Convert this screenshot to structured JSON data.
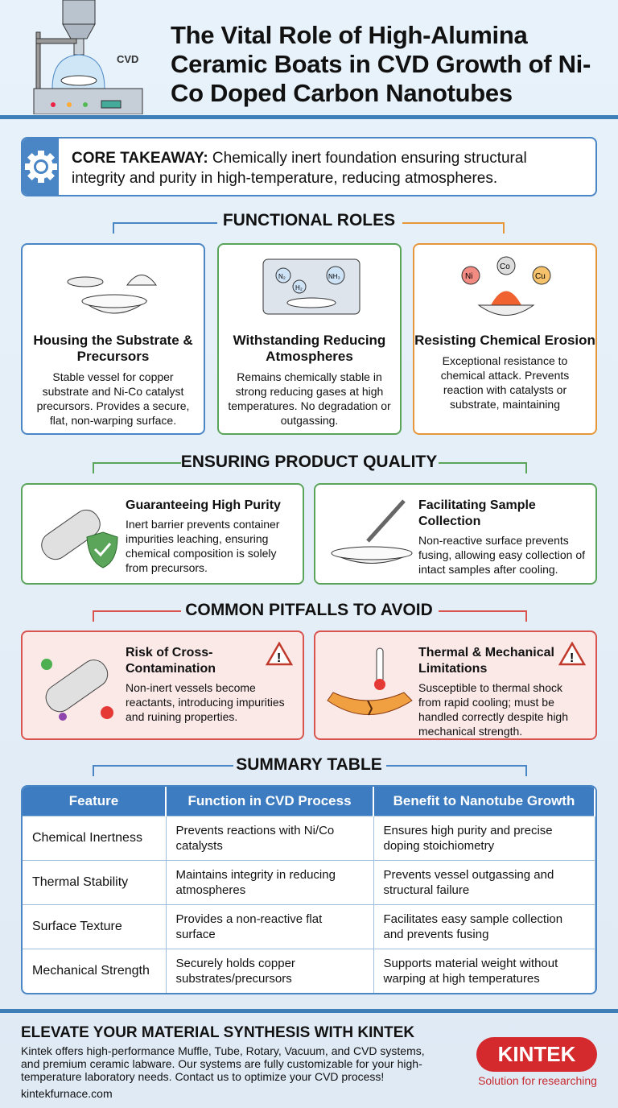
{
  "header": {
    "title": "The Vital Role of High-Alumina Ceramic Boats in CVD Growth of Ni-Co Doped Carbon Nanotubes",
    "illustration_label": "CVD"
  },
  "core": {
    "label": "CORE TAKEAWAY:",
    "text": " Chemically inert foundation ensuring structural integrity and purity in high-temperature, reducing atmospheres."
  },
  "functional": {
    "heading": "FUNCTIONAL ROLES",
    "cards": [
      {
        "title": "Housing the Substrate & Precursors",
        "text": "Stable vessel for copper substrate and Ni-Co catalyst precursors. Provides a secure, flat, non-warping surface.",
        "color": "#4a86c5"
      },
      {
        "title": "Withstanding Reducing Atmospheres",
        "text": "Remains chemically stable in strong reducing gases at high temperatures. No degradation or outgassing.",
        "color": "#5aa55a",
        "labels": [
          "N₂",
          "H₂",
          "NH₃"
        ]
      },
      {
        "title": "Resisting Chemical Erosion",
        "text": "Exceptional resistance to chemical attack. Prevents reaction with catalysts or substrate, maintaining",
        "color": "#e8963a",
        "labels": [
          "Ni",
          "Co",
          "Cu"
        ]
      }
    ]
  },
  "quality": {
    "heading": "ENSURING PRODUCT QUALITY",
    "cards": [
      {
        "title": "Guaranteeing High Purity",
        "text": "Inert barrier prevents container impurities leaching, ensuring chemical composition is solely from precursors."
      },
      {
        "title": "Facilitating Sample Collection",
        "text": "Non-reactive surface prevents fusing, allowing easy collection of intact samples after cooling."
      }
    ]
  },
  "pitfalls": {
    "heading": "COMMON PITFALLS TO AVOID",
    "cards": [
      {
        "title": "Risk of Cross-Contamination",
        "text": "Non-inert vessels become reactants, introducing impurities and ruining properties."
      },
      {
        "title": "Thermal & Mechanical Limitations",
        "text": "Susceptible to thermal shock from rapid cooling; must be handled correctly despite high mechanical strength."
      }
    ]
  },
  "summary": {
    "heading": "SUMMARY TABLE",
    "columns": [
      "Feature",
      "Function in CVD Process",
      "Benefit to Nanotube Growth"
    ],
    "rows": [
      [
        "Chemical Inertness",
        "Prevents reactions with Ni/Co catalysts",
        "Ensures high purity and precise doping stoichiometry"
      ],
      [
        "Thermal Stability",
        "Maintains integrity in reducing atmospheres",
        "Prevents vessel outgassing and structural failure"
      ],
      [
        "Surface Texture",
        "Provides a non-reactive flat surface",
        "Facilitates easy sample collection and prevents fusing"
      ],
      [
        "Mechanical Strength",
        "Securely holds copper substrates/precursors",
        "Supports material weight without warping at high temperatures"
      ]
    ]
  },
  "footer": {
    "heading": "ELEVATE YOUR MATERIAL SYNTHESIS WITH KINTEK",
    "text": "Kintek offers high-performance Muffle, Tube, Rotary, Vacuum, and CVD systems, and premium ceramic labware. Our systems are fully customizable for your high-temperature laboratory needs. Contact us to optimize your CVD process!",
    "url": "kintekfurnace.com",
    "logo": "KINTEK",
    "tagline": "Solution for researching"
  }
}
